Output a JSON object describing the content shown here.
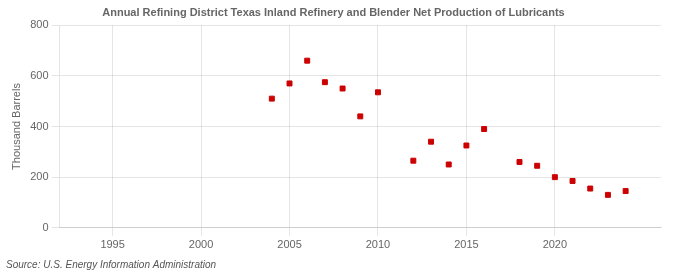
{
  "chart_data": {
    "type": "scatter",
    "title": "Annual Refining District Texas Inland Refinery and Blender Net Production of Lubricants",
    "ylabel": "Thousand Barrels",
    "annotations": [
      "Source: U.S. Energy Information Administration"
    ],
    "x": [
      2004,
      2005,
      2006,
      2007,
      2008,
      2009,
      2010,
      2012,
      2013,
      2014,
      2015,
      2016,
      2018,
      2019,
      2020,
      2021,
      2022,
      2023,
      2024
    ],
    "values": [
      510,
      570,
      660,
      575,
      550,
      440,
      535,
      265,
      340,
      250,
      325,
      390,
      260,
      245,
      200,
      185,
      155,
      130,
      145
    ],
    "color": "#cc0000",
    "marker": "square",
    "xlim": [
      1992,
      2026
    ],
    "ylim": [
      0,
      800
    ],
    "xticks": [
      1995,
      2000,
      2005,
      2010,
      2015,
      2020
    ],
    "yticks": [
      0,
      200,
      400,
      600,
      800
    ],
    "grid": true
  }
}
